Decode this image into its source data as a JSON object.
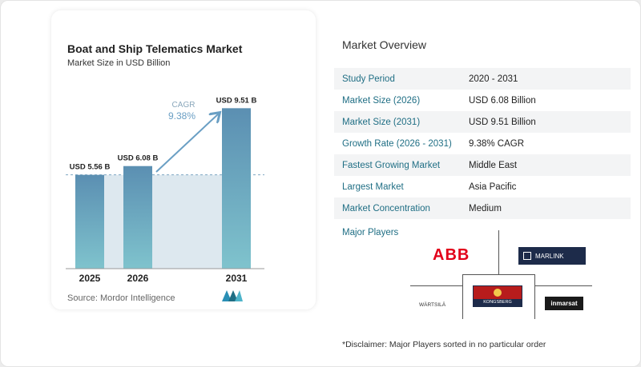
{
  "chart": {
    "title": "Boat and Ship Telematics Market",
    "subtitle": "Market Size in USD Billion",
    "source": "Source:  Mordor Intelligence",
    "cagr_label": "CAGR",
    "cagr_value": "9.38%"
  },
  "chart_data": {
    "type": "bar",
    "title": "Boat and Ship Telematics Market",
    "subtitle": "Market Size in USD Billion",
    "categories": [
      "2025",
      "2026",
      "2031"
    ],
    "values": [
      5.56,
      6.08,
      9.51
    ],
    "data_labels": [
      "USD 5.56 B",
      "USD 6.08 B",
      "USD 9.51 B"
    ],
    "ylim": [
      0,
      10
    ],
    "grid": false,
    "annotation": "CAGR 9.38%",
    "colors": {
      "bar_top": "#5b8fb2",
      "bar_bottom": "#7fc3cd",
      "shade": "#dde8ef",
      "arrow": "#6a9fc4"
    }
  },
  "overview": {
    "title": "Market Overview",
    "rows": [
      {
        "label": "Study Period",
        "value": "2020 - 2031"
      },
      {
        "label": "Market Size (2026)",
        "value": "USD 6.08 Billion"
      },
      {
        "label": "Market Size (2031)",
        "value": "USD 9.51 Billion"
      },
      {
        "label": "Growth Rate (2026 - 2031)",
        "value": "9.38% CAGR"
      },
      {
        "label": "Fastest Growing Market",
        "value": "Middle East"
      },
      {
        "label": "Largest Market",
        "value": "Asia Pacific"
      },
      {
        "label": "Market Concentration",
        "value": "Medium"
      }
    ]
  },
  "players": {
    "title": "Major Players",
    "abb": "ABB",
    "marlink": "MARLINK",
    "wartsila": "WÄRTSILÄ",
    "kongsberg": "KONGSBERG",
    "inmarsat": "inmarsat"
  },
  "disclaimer": "*Disclaimer: Major Players sorted in no particular order"
}
